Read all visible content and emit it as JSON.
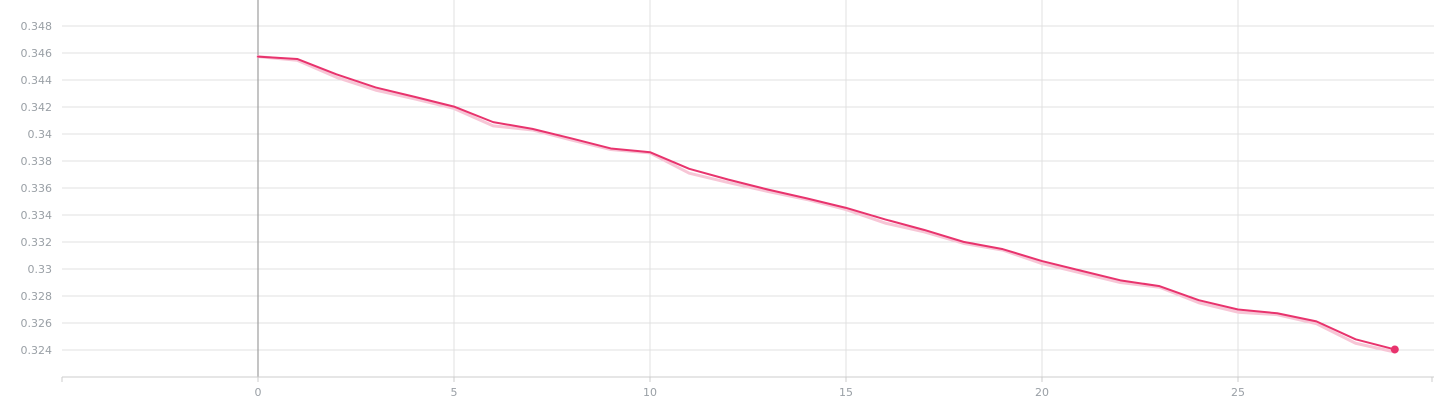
{
  "chart_data": {
    "type": "line",
    "title": "",
    "xlabel": "",
    "ylabel": "",
    "xlim": [
      -5,
      30
    ],
    "ylim": [
      0.322,
      0.349
    ],
    "x_ticks": [
      0,
      5,
      10,
      15,
      20,
      25
    ],
    "x_tick_labels": [
      "0",
      "5",
      "10",
      "15",
      "20",
      "25"
    ],
    "y_ticks": [
      0.324,
      0.326,
      0.328,
      0.33,
      0.332,
      0.334,
      0.336,
      0.338,
      0.34,
      0.342,
      0.344,
      0.346,
      0.348
    ],
    "y_tick_labels": [
      "0.324",
      "0.326",
      "0.328",
      "0.33",
      "0.332",
      "0.334",
      "0.336",
      "0.338",
      "0.34",
      "0.342",
      "0.344",
      "0.346",
      "0.348"
    ],
    "grid": true,
    "series": [
      {
        "role": "smoothed",
        "color": "#e8336d",
        "x": [
          0,
          1,
          2,
          3,
          4,
          5,
          6,
          7,
          8,
          9,
          10,
          11,
          12,
          13,
          14,
          15,
          16,
          17,
          18,
          19,
          20,
          21,
          22,
          23,
          24,
          25,
          26,
          27,
          28,
          29
        ],
        "y": [
          0.34573,
          0.34556,
          0.34442,
          0.34345,
          0.34275,
          0.34203,
          0.34088,
          0.34038,
          0.33967,
          0.33893,
          0.33865,
          0.33742,
          0.33662,
          0.33589,
          0.33523,
          0.33453,
          0.33367,
          0.33289,
          0.33201,
          0.33147,
          0.33059,
          0.32987,
          0.32916,
          0.32873,
          0.32769,
          0.327,
          0.32672,
          0.32612,
          0.32479,
          0.32404
        ]
      },
      {
        "role": "raw",
        "color": "#f7c6d6",
        "x": [
          0,
          1,
          2,
          3,
          4,
          5,
          6,
          7,
          8,
          9,
          10,
          11,
          12,
          13,
          14,
          15,
          16,
          17,
          18,
          19,
          20,
          21,
          22,
          23,
          24,
          25,
          26,
          27,
          28,
          29
        ],
        "y": [
          0.34573,
          0.34546,
          0.3442,
          0.34325,
          0.3426,
          0.34189,
          0.3406,
          0.3403,
          0.33955,
          0.33885,
          0.3386,
          0.3371,
          0.3364,
          0.33575,
          0.33515,
          0.3344,
          0.3334,
          0.33275,
          0.3319,
          0.3314,
          0.3304,
          0.3297,
          0.329,
          0.32865,
          0.3275,
          0.3268,
          0.32662,
          0.32595,
          0.3245,
          0.32385
        ]
      }
    ]
  }
}
